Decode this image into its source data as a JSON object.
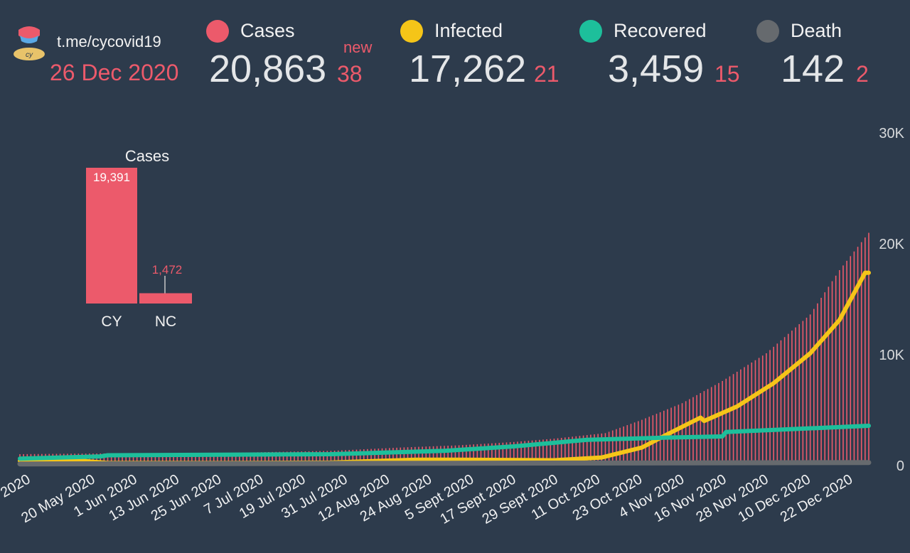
{
  "header": {
    "channel": "t.me/cycovid19",
    "date": "26 Dec 2020",
    "new_label": "new",
    "stats": [
      {
        "key": "cases",
        "label": "Cases",
        "value": "20,863",
        "delta": "38",
        "color": "#ec5a6b"
      },
      {
        "key": "infected",
        "label": "Infected",
        "value": "17,262",
        "delta": "21",
        "color": "#f5c518"
      },
      {
        "key": "recovered",
        "label": "Recovered",
        "value": "3,459",
        "delta": "15",
        "color": "#1dbf9b"
      },
      {
        "key": "death",
        "label": "Death",
        "value": "142",
        "delta": "2",
        "color": "#666a6e"
      }
    ]
  },
  "chart_data": [
    {
      "type": "bar",
      "title": "Cases",
      "categories": [
        "CY",
        "NC"
      ],
      "values": [
        19391,
        1472
      ],
      "value_labels": [
        "19,391",
        "1,472"
      ],
      "color": "#ec5a6b"
    },
    {
      "type": "line",
      "x": [
        "2020",
        "20 May 2020",
        "1 Jun 2020",
        "13 Jun 2020",
        "25 Jun 2020",
        "7 Jul 2020",
        "19 Jul 2020",
        "31 Jul 2020",
        "12 Aug 2020",
        "24 Aug 2020",
        "5 Sept 2020",
        "17 Sept 2020",
        "29 Sept 2020",
        "11 Oct 2020",
        "23 Oct 2020",
        "4 Nov 2020",
        "16 Nov 2020",
        "28 Nov 2020",
        "10 Dec 2020",
        "22 Dec 2020"
      ],
      "x_tick_labels": [
        "2020",
        "20 May 2020",
        "1 Jun 2020",
        "13 Jun 2020",
        "25 Jun 2020",
        "7 Jul 2020",
        "19 Jul 2020",
        "31 Jul 2020",
        "12 Aug 2020",
        "24 Aug 2020",
        "5 Sept 2020",
        "17 Sept 2020",
        "29 Sept 2020",
        "11 Oct 2020",
        "23 Oct 2020",
        "4 Nov 2020",
        "16 Nov 2020",
        "28 Nov 2020",
        "10 Dec 2020",
        "22 Dec 2020"
      ],
      "y_ticks": [
        "30K",
        "20K",
        "10K",
        "0"
      ],
      "ylim": [
        0,
        30000
      ],
      "grid": false,
      "series": [
        {
          "name": "Cases",
          "type": "bar",
          "color": "#ec5a6b",
          "points": [
            [
              "2020-05-08",
              900
            ],
            [
              "2020-06-01",
              970
            ],
            [
              "2020-07-01",
              1000
            ],
            [
              "2020-08-01",
              1200
            ],
            [
              "2020-08-20",
              1500
            ],
            [
              "2020-09-05",
              1700
            ],
            [
              "2020-09-20",
              2000
            ],
            [
              "2020-10-01",
              2300
            ],
            [
              "2020-10-15",
              2800
            ],
            [
              "2020-10-25",
              4000
            ],
            [
              "2020-11-05",
              5500
            ],
            [
              "2020-11-16",
              7500
            ],
            [
              "2020-11-28",
              10000
            ],
            [
              "2020-12-10",
              13500
            ],
            [
              "2020-12-18",
              17500
            ],
            [
              "2020-12-26",
              20863
            ]
          ]
        },
        {
          "name": "Infected",
          "type": "line",
          "color": "#f5c518",
          "points": [
            [
              "2020-05-08",
              300
            ],
            [
              "2020-05-25",
              300
            ],
            [
              "2020-06-01",
              100
            ],
            [
              "2020-07-01",
              100
            ],
            [
              "2020-08-01",
              150
            ],
            [
              "2020-08-24",
              400
            ],
            [
              "2020-09-05",
              400
            ],
            [
              "2020-10-01",
              350
            ],
            [
              "2020-10-14",
              600
            ],
            [
              "2020-10-25",
              1500
            ],
            [
              "2020-11-01",
              2700
            ],
            [
              "2020-11-10",
              4200
            ],
            [
              "2020-11-11",
              3900
            ],
            [
              "2020-11-20",
              5200
            ],
            [
              "2020-11-30",
              7300
            ],
            [
              "2020-12-10",
              10000
            ],
            [
              "2020-12-18",
              13000
            ],
            [
              "2020-12-25",
              17262
            ],
            [
              "2020-12-26",
              17262
            ]
          ]
        },
        {
          "name": "Recovered",
          "type": "line",
          "color": "#1dbf9b",
          "points": [
            [
              "2020-05-08",
              500
            ],
            [
              "2020-05-30",
              700
            ],
            [
              "2020-06-01",
              800
            ],
            [
              "2020-08-01",
              900
            ],
            [
              "2020-09-01",
              1200
            ],
            [
              "2020-09-20",
              1600
            ],
            [
              "2020-10-10",
              2200
            ],
            [
              "2020-11-01",
              2400
            ],
            [
              "2020-11-16",
              2500
            ],
            [
              "2020-11-17",
              2900
            ],
            [
              "2020-12-26",
              3459
            ]
          ]
        },
        {
          "name": "Death",
          "type": "line",
          "color": "#666a6e",
          "points": [
            [
              "2020-05-08",
              20
            ],
            [
              "2020-12-26",
              142
            ]
          ]
        }
      ]
    }
  ]
}
